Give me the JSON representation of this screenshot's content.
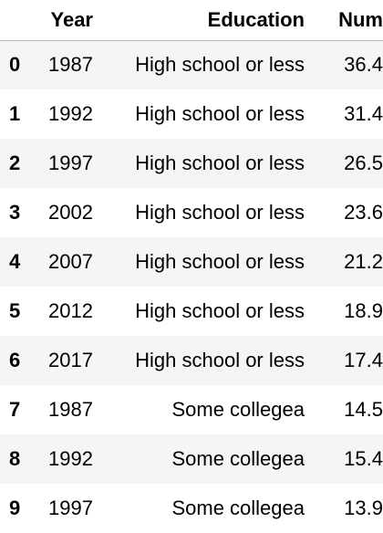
{
  "table": {
    "columns": [
      "Year",
      "Education",
      "Num"
    ],
    "rows": [
      {
        "index": "0",
        "year": "1987",
        "education": "High school or less",
        "num": "36.4"
      },
      {
        "index": "1",
        "year": "1992",
        "education": "High school or less",
        "num": "31.4"
      },
      {
        "index": "2",
        "year": "1997",
        "education": "High school or less",
        "num": "26.5"
      },
      {
        "index": "3",
        "year": "2002",
        "education": "High school or less",
        "num": "23.6"
      },
      {
        "index": "4",
        "year": "2007",
        "education": "High school or less",
        "num": "21.2"
      },
      {
        "index": "5",
        "year": "2012",
        "education": "High school or less",
        "num": "18.9"
      },
      {
        "index": "6",
        "year": "2017",
        "education": "High school or less",
        "num": "17.4"
      },
      {
        "index": "7",
        "year": "1987",
        "education": "Some collegea",
        "num": "14.5"
      },
      {
        "index": "8",
        "year": "1992",
        "education": "Some collegea",
        "num": "15.4"
      },
      {
        "index": "9",
        "year": "1997",
        "education": "Some collegea",
        "num": "13.9"
      }
    ]
  }
}
